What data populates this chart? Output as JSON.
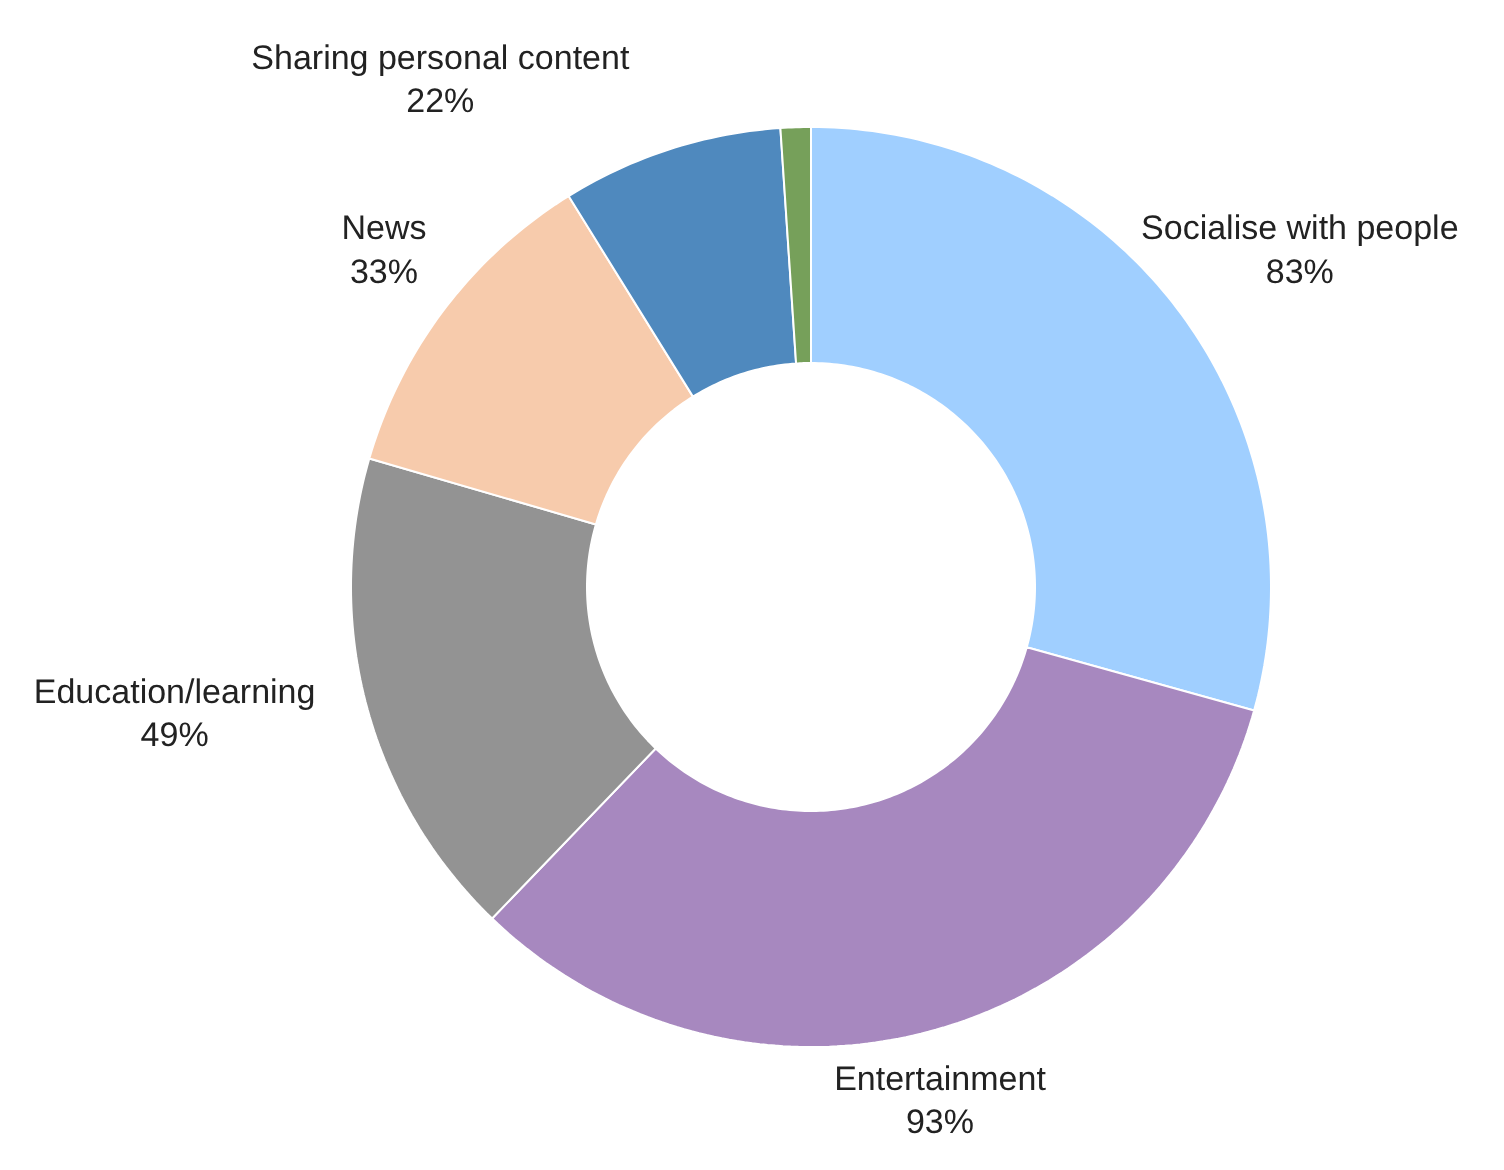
{
  "chart_data": {
    "type": "donut",
    "categories": [
      "Socialise with people",
      "Entertainment",
      "Education/learning",
      "News",
      "Sharing personal content",
      null
    ],
    "values": [
      83,
      93,
      49,
      33,
      22,
      3
    ],
    "colors": [
      "#a0cfff",
      "#a788bf",
      "#939393",
      "#f7cbac",
      "#4f89be",
      "#76a05a"
    ],
    "value_labels": [
      "83%",
      "93%",
      "49%",
      "33%",
      "22%",
      null
    ]
  }
}
